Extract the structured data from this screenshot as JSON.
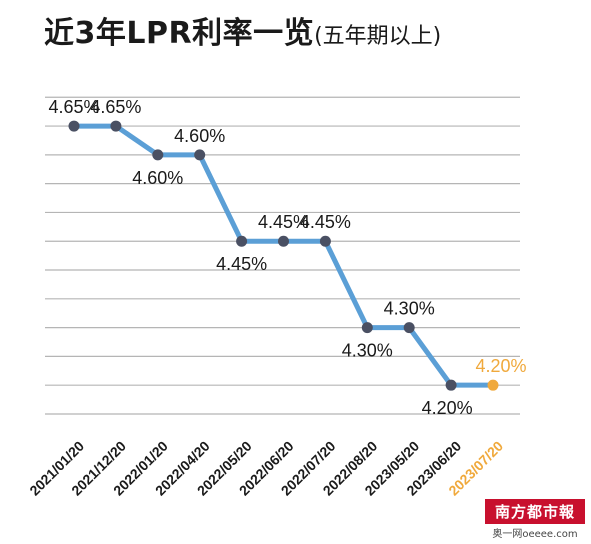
{
  "title": "近3年LPR利率一览",
  "subtitle": "(五年期以上)",
  "colors": {
    "line": "#5b9fd6",
    "marker": "#4a5063",
    "highlight": "#f0a93c",
    "grid": "#b5b5b5",
    "text": "#1a1a1a"
  },
  "chart_data": {
    "type": "line",
    "title": "近3年LPR利率一览",
    "subtitle": "(五年期以上)",
    "categories": [
      "2021/01/20",
      "2021/12/20",
      "2022/01/20",
      "2022/04/20",
      "2022/05/20",
      "2022/06/20",
      "2022/07/20",
      "2022/08/20",
      "2023/05/20",
      "2023/06/20",
      "2023/07/20"
    ],
    "values": [
      4.65,
      4.65,
      4.6,
      4.6,
      4.45,
      4.45,
      4.45,
      4.3,
      4.3,
      4.2,
      4.2
    ],
    "data_labels": [
      {
        "index": 0,
        "text": "4.65%",
        "position": "above"
      },
      {
        "index": 1,
        "text": "4.65%",
        "position": "above"
      },
      {
        "index": 2,
        "text": "4.60%",
        "position": "below"
      },
      {
        "index": 3,
        "text": "4.60%",
        "position": "above"
      },
      {
        "index": 4,
        "text": "4.45%",
        "position": "below"
      },
      {
        "index": 5,
        "text": "4.45%",
        "position": "above"
      },
      {
        "index": 6,
        "text": "4.45%",
        "position": "above"
      },
      {
        "index": 7,
        "text": "4.30%",
        "position": "below"
      },
      {
        "index": 8,
        "text": "4.30%",
        "position": "above"
      },
      {
        "index": 9,
        "text": "4.20%",
        "position": "below"
      },
      {
        "index": 10,
        "text": "4.20%",
        "position": "above"
      }
    ],
    "highlight_index": 10,
    "xlabel": "",
    "ylabel": "",
    "ylim": [
      4.11,
      4.73
    ],
    "grid": true,
    "legend": "none"
  },
  "watermark": {
    "logo": "南方都市報",
    "site": "奥一网oeeee.com"
  }
}
